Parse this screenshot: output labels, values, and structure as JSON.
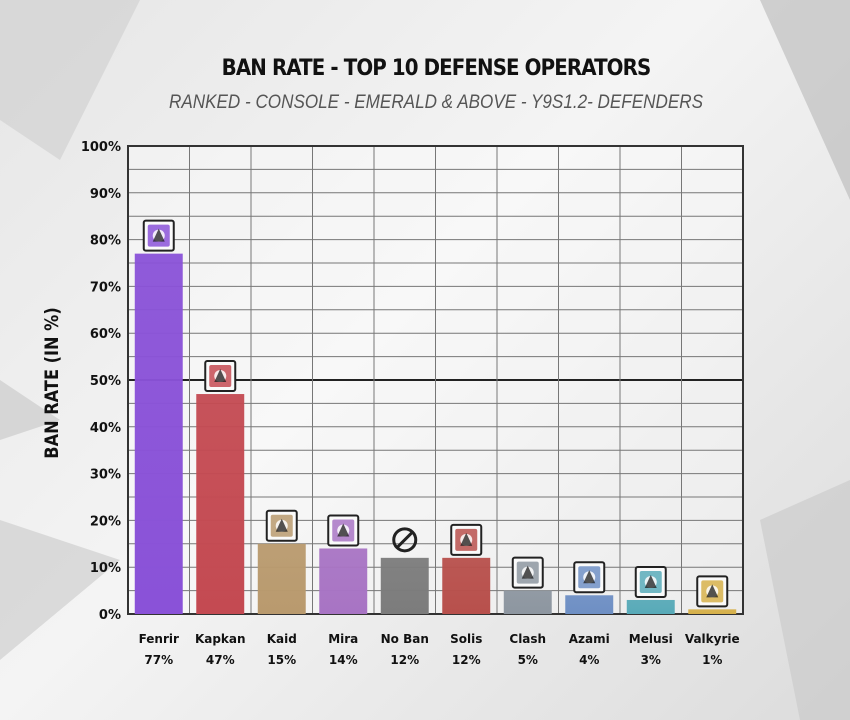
{
  "chart_data": {
    "type": "bar",
    "title": "BAN RATE - TOP 10 DEFENSE OPERATORS",
    "subtitle": "RANKED - CONSOLE - EMERALD & ABOVE - Y9S1.2- DEFENDERS",
    "ylabel": "BAN RATE (IN %)",
    "xlabel": "",
    "ylim": [
      0,
      100
    ],
    "yticks": [
      "0%",
      "10%",
      "20%",
      "30%",
      "40%",
      "50%",
      "60%",
      "70%",
      "80%",
      "90%",
      "100%"
    ],
    "categories": [
      "Fenrir",
      "Kapkan",
      "Kaid",
      "Mira",
      "No Ban",
      "Solis",
      "Clash",
      "Azami",
      "Melusi",
      "Valkyrie"
    ],
    "values": [
      77,
      47,
      15,
      14,
      12,
      12,
      5,
      4,
      3,
      1
    ],
    "value_labels": [
      "77%",
      "47%",
      "15%",
      "14%",
      "12%",
      "12%",
      "5%",
      "4%",
      "3%",
      "1%"
    ],
    "colors": [
      "#8a52d8",
      "#c44a52",
      "#b99a6e",
      "#a874c4",
      "#7c7c7c",
      "#b8504c",
      "#8d96a0",
      "#6e8fc4",
      "#58aab8",
      "#d6b04a"
    ],
    "icons": [
      "fenrir-icon",
      "kapkan-icon",
      "kaid-icon",
      "mira-icon",
      "no-ban-icon",
      "solis-icon",
      "clash-icon",
      "azami-icon",
      "melusi-icon",
      "valkyrie-icon"
    ],
    "grid": true,
    "legend": "none"
  }
}
